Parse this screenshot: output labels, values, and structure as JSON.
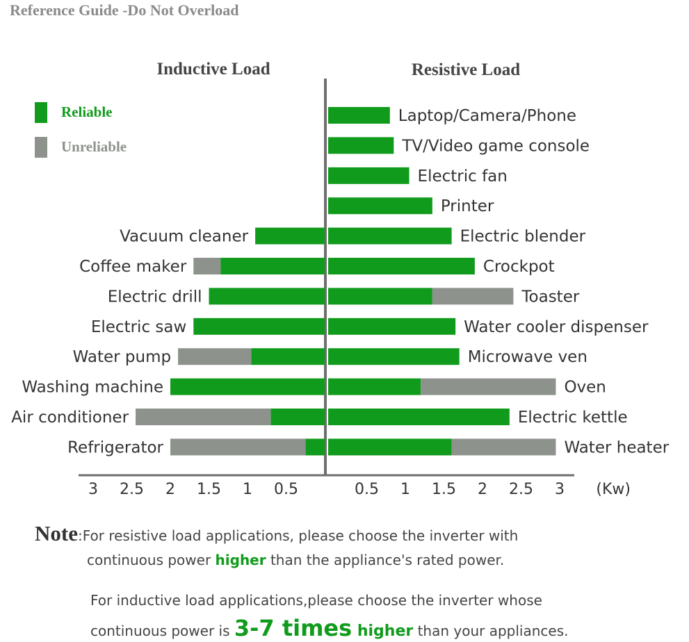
{
  "header": {
    "title": "Reference Guide -Do Not Overload"
  },
  "chart_data": [
    {
      "type": "bar",
      "orientation": "horizontal",
      "direction": "left",
      "title": "Inductive Load",
      "categories": [
        "Vacuum cleaner",
        "Coffee maker",
        "Electric drill",
        "Electric saw",
        "Water pump",
        "Washing machine",
        "Air conditioner",
        "Refrigerator"
      ],
      "series": [
        {
          "name": "Reliable",
          "color": "#119b1c",
          "values": [
            0.9,
            1.35,
            1.5,
            1.7,
            0.95,
            2.0,
            0.7,
            0.25
          ]
        },
        {
          "name": "Unreliable",
          "color": "#8d928d",
          "values": [
            0,
            0.35,
            0,
            0,
            0.95,
            0,
            1.75,
            1.75
          ]
        }
      ],
      "stacked": true,
      "xlim": [
        0,
        3.2
      ],
      "xticks": [
        0.5,
        1,
        1.5,
        2,
        2.5,
        3
      ]
    },
    {
      "type": "bar",
      "orientation": "horizontal",
      "direction": "right",
      "title": "Resistive Load",
      "categories": [
        "Laptop/Camera/Phone",
        "TV/Video game console",
        "Electric fan",
        "Printer",
        "Electric blender",
        "Crockpot",
        "Toaster",
        "Water cooler dispenser",
        "Microwave ven",
        "Oven",
        "Electric kettle",
        "Water heater"
      ],
      "series": [
        {
          "color": "#119b1c",
          "values": [
            0.8,
            0.85,
            1.05,
            1.35,
            1.6,
            1.9,
            1.35,
            1.65,
            1.7,
            1.2,
            2.35,
            1.6
          ]
        },
        {
          "color": "#8d928d",
          "values": [
            0,
            0,
            0,
            0,
            0,
            0,
            1.05,
            0,
            0,
            1.75,
            0,
            1.35
          ]
        }
      ],
      "stacked": true,
      "xlabel": "(Kw)",
      "xlim": [
        0,
        3.2
      ],
      "xticks": [
        0.5,
        1,
        1.5,
        2,
        2.5,
        3
      ]
    }
  ],
  "notes": [
    [
      "Note",
      ":For resistive load applications, please choose the inverter with",
      "continuous power ",
      "higher",
      " than the appliance's rated power."
    ],
    [
      "For inductive load applications,please choose the inverter whose",
      "continuous power is ",
      "3-7 times",
      " higher",
      " than your appliances."
    ]
  ]
}
